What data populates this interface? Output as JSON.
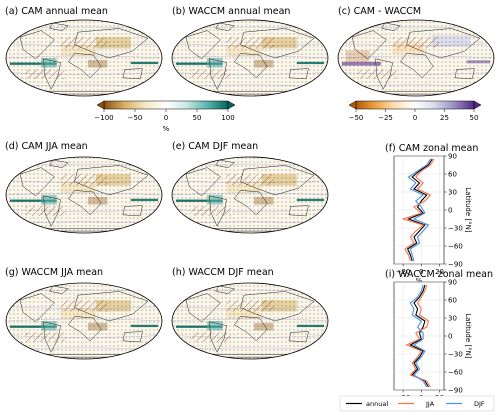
{
  "chart_data": {
    "type": "figure",
    "maps": [
      {
        "id": "a",
        "title": "(a) CAM annual mean",
        "colormap": "brown-teal"
      },
      {
        "id": "b",
        "title": "(b) WACCM annual mean",
        "colormap": "brown-teal"
      },
      {
        "id": "c",
        "title": "(c) CAM - WACCM",
        "colormap": "orange-purple"
      },
      {
        "id": "d",
        "title": "(d) CAM JJA mean",
        "colormap": "brown-teal"
      },
      {
        "id": "e",
        "title": "(e) CAM DJF mean",
        "colormap": "brown-teal"
      },
      {
        "id": "g",
        "title": "(g) WACCM JJA mean",
        "colormap": "brown-teal"
      },
      {
        "id": "h",
        "title": "(h) WACCM DJF mean",
        "colormap": "brown-teal"
      }
    ],
    "colorbars": [
      {
        "id": "cb1",
        "ticks": [
          "−100",
          "−50",
          "0",
          "50",
          "100"
        ],
        "label": "%",
        "range": [
          -100,
          100
        ],
        "colors": [
          "#8c510a",
          "#d8b365",
          "#f6e8c3",
          "#ffffff",
          "#c7eae5",
          "#5ab4ac",
          "#01665e"
        ]
      },
      {
        "id": "cb2",
        "ticks": [
          "−50",
          "−25",
          "0",
          "25",
          "50"
        ],
        "label": "%",
        "range": [
          -50,
          50
        ],
        "colors": [
          "#b35806",
          "#f1a340",
          "#fee0b6",
          "#ffffff",
          "#d8daeb",
          "#998ec3",
          "#542788"
        ]
      }
    ],
    "zonal": [
      {
        "id": "f",
        "title": "(f) CAM zonal mean",
        "xlabel": "%",
        "ylabel": "Latitude [°N]",
        "xlim": [
          -30,
          25
        ],
        "ylim": [
          -90,
          90
        ],
        "xticks": [
          -20,
          0,
          20
        ],
        "yticks": [
          -90,
          -60,
          -30,
          0,
          30,
          60,
          90
        ],
        "lat": [
          -85,
          -75,
          -65,
          -55,
          -45,
          -35,
          -25,
          -15,
          -5,
          5,
          15,
          25,
          35,
          45,
          55,
          65,
          75,
          85
        ],
        "series": [
          {
            "name": "annual",
            "color": "#000000",
            "values": [
              -10,
              -12,
              -15,
              -5,
              -8,
              -2,
              4,
              -14,
              2,
              -4,
              0,
              6,
              -8,
              -2,
              -10,
              -2,
              8,
              12
            ]
          },
          {
            "name": "JJA",
            "color": "#f4734a",
            "values": [
              -12,
              -14,
              -18,
              -8,
              -12,
              -6,
              2,
              -20,
              0,
              -8,
              4,
              10,
              -4,
              2,
              -6,
              0,
              10,
              14
            ]
          },
          {
            "name": "DJF",
            "color": "#4a90e2",
            "values": [
              -8,
              -10,
              -12,
              -2,
              -4,
              2,
              8,
              -8,
              4,
              0,
              -6,
              2,
              -12,
              -6,
              -14,
              -4,
              6,
              10
            ]
          }
        ]
      },
      {
        "id": "i",
        "title": "(i) WACCM zonal mean",
        "xlabel": "%",
        "ylabel": "Latitude [°N]",
        "xlim": [
          -30,
          25
        ],
        "ylim": [
          -90,
          90
        ],
        "xticks": [
          -20,
          0,
          20
        ],
        "yticks": [
          -90,
          -60,
          -30,
          0,
          30,
          60,
          90
        ],
        "lat": [
          -85,
          -75,
          -65,
          -55,
          -45,
          -35,
          -25,
          -15,
          -5,
          5,
          15,
          25,
          35,
          45,
          55,
          65,
          75,
          85
        ],
        "series": [
          {
            "name": "annual",
            "color": "#000000",
            "values": [
              8,
              4,
              -10,
              -4,
              -8,
              -2,
              2,
              -12,
              0,
              -2,
              2,
              4,
              -6,
              -4,
              -8,
              -2,
              2,
              4
            ]
          },
          {
            "name": "JJA",
            "color": "#f4734a",
            "values": [
              10,
              6,
              -12,
              -6,
              -10,
              -4,
              0,
              -16,
              -2,
              -6,
              6,
              8,
              -2,
              0,
              -4,
              0,
              4,
              6
            ]
          },
          {
            "name": "DJF",
            "color": "#4a90e2",
            "values": [
              6,
              2,
              -8,
              -2,
              -6,
              0,
              4,
              -8,
              2,
              2,
              -4,
              0,
              -10,
              -8,
              -12,
              -4,
              0,
              2
            ]
          }
        ]
      }
    ],
    "legend": {
      "placement": "bottom-right",
      "entries": [
        "annual",
        "JJA",
        "DJF"
      ]
    }
  }
}
